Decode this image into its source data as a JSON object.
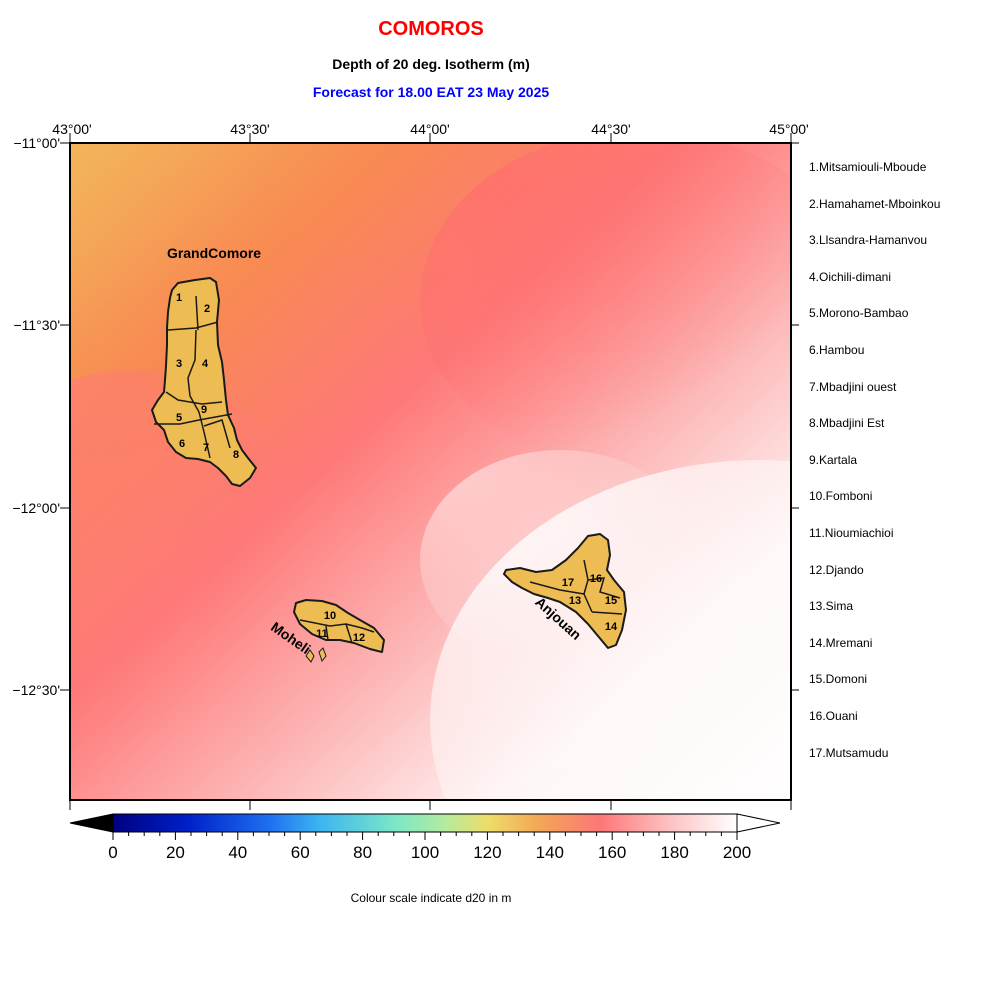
{
  "header": {
    "title": "COMOROS",
    "subtitle": "Depth of 20 deg. Isotherm (m)",
    "forecast": "Forecast for  18.00 EAT 23 May 2025"
  },
  "colors": {
    "title": "#ff0000",
    "forecast": "#0000ff",
    "island_fill": "#edbc52",
    "island_stroke": "#1a1a1a"
  },
  "map": {
    "lon_ticks": [
      "43°00'",
      "43°30'",
      "44°00'",
      "44°30'",
      "45°00'"
    ],
    "lat_ticks": [
      "−11°00'",
      "−11°30'",
      "−12°00'",
      "−12°30'"
    ],
    "island_labels": {
      "grand_comore": "GrandComore",
      "moheli": "Moheli",
      "anjouan": "Anjouan"
    },
    "region_numbers": [
      "1",
      "2",
      "3",
      "4",
      "5",
      "6",
      "7",
      "8",
      "9",
      "10",
      "11",
      "12",
      "13",
      "14",
      "15",
      "16",
      "17"
    ]
  },
  "regions": [
    "1.Mitsamiouli-Mboude",
    "2.Hamahamet-Mboinkou",
    "3.Llsandra-Hamanvou",
    "4.Oichili-dimani",
    "5.Morono-Bambao",
    "6.Hambou",
    "7.Mbadjini ouest",
    "8.Mbadjini Est",
    "9.Kartala",
    "10.Fomboni",
    "11.Nioumiachioi",
    "12.Djando",
    "13.Sima",
    "14.Mremani",
    "15.Domoni",
    "16.Ouani",
    "17.Mutsamudu"
  ],
  "colorbar": {
    "ticks": [
      "0",
      "20",
      "40",
      "60",
      "80",
      "100",
      "120",
      "140",
      "160",
      "180",
      "200"
    ],
    "min": 0,
    "max": 200,
    "caption": "Colour scale indicate d20 in m"
  }
}
